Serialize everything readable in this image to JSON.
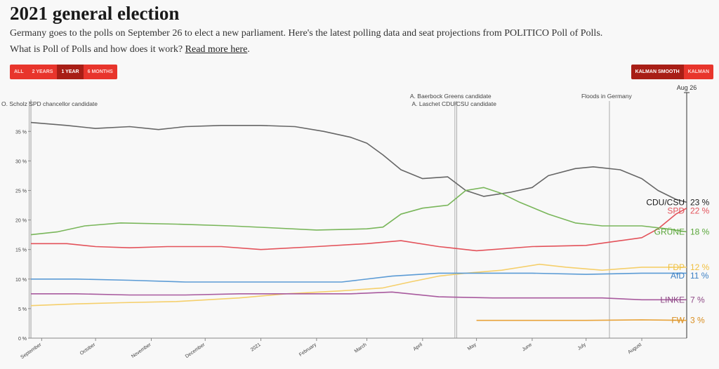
{
  "header": {
    "title": "2021 general election",
    "subtitle": "Germany goes to the polls on September 26 to elect a new parliament. Here's the latest polling data and seat projections from POLITICO Poll of Polls.",
    "question_prefix": "What is Poll of Polls and how does it work? ",
    "read_more_label": "Read more here",
    "question_suffix": "."
  },
  "controls": {
    "range_buttons": [
      "ALL",
      "2 YEARS",
      "1 YEAR",
      "6 MONTHS"
    ],
    "range_selected": "1 YEAR",
    "smoothing_buttons": [
      "KALMAN SMOOTH",
      "KALMAN"
    ],
    "smoothing_selected": "KALMAN SMOOTH"
  },
  "chart_data": {
    "type": "line",
    "x_axis": "date",
    "x_range": [
      "2020-08-26",
      "2021-08-26"
    ],
    "xticks": [
      {
        "label": "September",
        "date": "2020-09-01"
      },
      {
        "label": "October",
        "date": "2020-10-01"
      },
      {
        "label": "November",
        "date": "2020-11-01"
      },
      {
        "label": "December",
        "date": "2020-12-01"
      },
      {
        "label": "2021",
        "date": "2021-01-01"
      },
      {
        "label": "February",
        "date": "2021-02-01"
      },
      {
        "label": "March",
        "date": "2021-03-01"
      },
      {
        "label": "April",
        "date": "2021-04-01"
      },
      {
        "label": "May",
        "date": "2021-05-01"
      },
      {
        "label": "June",
        "date": "2021-06-01"
      },
      {
        "label": "July",
        "date": "2021-07-01"
      },
      {
        "label": "August",
        "date": "2021-08-01"
      }
    ],
    "ylim": [
      0,
      38
    ],
    "yticks": [
      0,
      5,
      10,
      15,
      20,
      25,
      30,
      35
    ],
    "y_tick_suffix": " %",
    "grid": false,
    "current_date_label": "Aug 26",
    "annotations": [
      {
        "date": "2020-08-25",
        "text": "O. Scholz SPD chancellor candidate"
      },
      {
        "date": "2021-04-19",
        "text": "A. Baerbock Greens candidate"
      },
      {
        "date": "2021-04-20",
        "text": "A. Laschet CDU/CSU candidate"
      },
      {
        "date": "2021-07-14",
        "text": "Floods in Germany"
      }
    ],
    "series": [
      {
        "name": "CDU/CSU",
        "end_label": "23 %",
        "color": "#666666",
        "text_color": "#1a1a1a",
        "points": [
          [
            "2020-08-26",
            36.5
          ],
          [
            "2020-09-15",
            36
          ],
          [
            "2020-10-01",
            35.5
          ],
          [
            "2020-10-20",
            35.8
          ],
          [
            "2020-11-05",
            35.3
          ],
          [
            "2020-11-20",
            35.8
          ],
          [
            "2020-12-10",
            36
          ],
          [
            "2021-01-01",
            36
          ],
          [
            "2021-01-20",
            35.8
          ],
          [
            "2021-02-05",
            35
          ],
          [
            "2021-02-20",
            34
          ],
          [
            "2021-03-01",
            33
          ],
          [
            "2021-03-10",
            31
          ],
          [
            "2021-03-20",
            28.5
          ],
          [
            "2021-04-01",
            27
          ],
          [
            "2021-04-15",
            27.3
          ],
          [
            "2021-04-25",
            25
          ],
          [
            "2021-05-05",
            24
          ],
          [
            "2021-05-20",
            24.7
          ],
          [
            "2021-06-01",
            25.5
          ],
          [
            "2021-06-10",
            27.5
          ],
          [
            "2021-06-25",
            28.7
          ],
          [
            "2021-07-05",
            29
          ],
          [
            "2021-07-20",
            28.5
          ],
          [
            "2021-08-01",
            27
          ],
          [
            "2021-08-10",
            25
          ],
          [
            "2021-08-20",
            23.5
          ],
          [
            "2021-08-26",
            23
          ]
        ]
      },
      {
        "name": "SPD",
        "end_label": "22 %",
        "color": "#e3525a",
        "text_color": "#e3525a",
        "points": [
          [
            "2020-08-26",
            16
          ],
          [
            "2020-09-15",
            16
          ],
          [
            "2020-10-01",
            15.5
          ],
          [
            "2020-10-20",
            15.3
          ],
          [
            "2020-11-10",
            15.5
          ],
          [
            "2020-12-10",
            15.5
          ],
          [
            "2021-01-01",
            15
          ],
          [
            "2021-02-01",
            15.5
          ],
          [
            "2021-03-01",
            16
          ],
          [
            "2021-03-20",
            16.5
          ],
          [
            "2021-04-10",
            15.5
          ],
          [
            "2021-05-01",
            14.8
          ],
          [
            "2021-06-01",
            15.5
          ],
          [
            "2021-07-01",
            15.7
          ],
          [
            "2021-07-20",
            16.5
          ],
          [
            "2021-08-01",
            17
          ],
          [
            "2021-08-10",
            18.5
          ],
          [
            "2021-08-20",
            21
          ],
          [
            "2021-08-26",
            22
          ]
        ]
      },
      {
        "name": "GRÜNE",
        "end_label": "18 %",
        "color": "#79b65a",
        "text_color": "#5aa63a",
        "points": [
          [
            "2020-08-26",
            17.5
          ],
          [
            "2020-09-10",
            18
          ],
          [
            "2020-09-25",
            19
          ],
          [
            "2020-10-15",
            19.5
          ],
          [
            "2020-11-15",
            19.3
          ],
          [
            "2020-12-15",
            19
          ],
          [
            "2021-01-05",
            18.7
          ],
          [
            "2021-02-01",
            18.3
          ],
          [
            "2021-03-01",
            18.5
          ],
          [
            "2021-03-10",
            18.8
          ],
          [
            "2021-03-20",
            21
          ],
          [
            "2021-04-01",
            22
          ],
          [
            "2021-04-15",
            22.5
          ],
          [
            "2021-04-25",
            25
          ],
          [
            "2021-05-05",
            25.5
          ],
          [
            "2021-05-15",
            24.5
          ],
          [
            "2021-05-25",
            23
          ],
          [
            "2021-06-10",
            21
          ],
          [
            "2021-06-25",
            19.5
          ],
          [
            "2021-07-10",
            19
          ],
          [
            "2021-08-01",
            19
          ],
          [
            "2021-08-15",
            18.5
          ],
          [
            "2021-08-26",
            18
          ]
        ]
      },
      {
        "name": "FDP",
        "end_label": "12 %",
        "color": "#f5cf6b",
        "text_color": "#f0c040",
        "points": [
          [
            "2020-08-26",
            5.5
          ],
          [
            "2020-09-20",
            5.8
          ],
          [
            "2020-10-15",
            6
          ],
          [
            "2020-11-15",
            6.2
          ],
          [
            "2020-12-20",
            6.8
          ],
          [
            "2021-01-15",
            7.5
          ],
          [
            "2021-02-15",
            8
          ],
          [
            "2021-03-10",
            8.5
          ],
          [
            "2021-03-25",
            9.5
          ],
          [
            "2021-04-10",
            10.5
          ],
          [
            "2021-04-25",
            11
          ],
          [
            "2021-05-15",
            11.5
          ],
          [
            "2021-06-05",
            12.5
          ],
          [
            "2021-06-20",
            12
          ],
          [
            "2021-07-10",
            11.5
          ],
          [
            "2021-08-01",
            12
          ],
          [
            "2021-08-26",
            12
          ]
        ]
      },
      {
        "name": "AfD",
        "end_label": "11 %",
        "color": "#5b9bd5",
        "text_color": "#3a7fc4",
        "points": [
          [
            "2020-08-26",
            10
          ],
          [
            "2020-09-20",
            10
          ],
          [
            "2020-10-20",
            9.8
          ],
          [
            "2020-11-20",
            9.5
          ],
          [
            "2020-12-20",
            9.5
          ],
          [
            "2021-01-15",
            9.5
          ],
          [
            "2021-02-15",
            9.5
          ],
          [
            "2021-03-15",
            10.5
          ],
          [
            "2021-04-10",
            11
          ],
          [
            "2021-05-01",
            11
          ],
          [
            "2021-06-01",
            11
          ],
          [
            "2021-07-01",
            10.8
          ],
          [
            "2021-08-01",
            11
          ],
          [
            "2021-08-26",
            11
          ]
        ]
      },
      {
        "name": "LINKE",
        "end_label": "7 %",
        "color": "#a85a9e",
        "text_color": "#8e4a86",
        "points": [
          [
            "2020-08-26",
            7.5
          ],
          [
            "2020-09-20",
            7.5
          ],
          [
            "2020-10-20",
            7.3
          ],
          [
            "2020-11-20",
            7.3
          ],
          [
            "2020-12-20",
            7.5
          ],
          [
            "2021-01-20",
            7.5
          ],
          [
            "2021-02-20",
            7.5
          ],
          [
            "2021-03-15",
            7.8
          ],
          [
            "2021-04-10",
            7
          ],
          [
            "2021-05-10",
            6.8
          ],
          [
            "2021-06-10",
            6.8
          ],
          [
            "2021-07-10",
            6.8
          ],
          [
            "2021-08-01",
            6.5
          ],
          [
            "2021-08-26",
            6.5
          ]
        ]
      },
      {
        "name": "FW",
        "end_label": "3 %",
        "color": "#e8a33a",
        "text_color": "#d98e20",
        "points": [
          [
            "2021-05-01",
            3
          ],
          [
            "2021-06-01",
            3
          ],
          [
            "2021-07-01",
            3
          ],
          [
            "2021-08-01",
            3.1
          ],
          [
            "2021-08-26",
            3
          ]
        ]
      }
    ]
  }
}
